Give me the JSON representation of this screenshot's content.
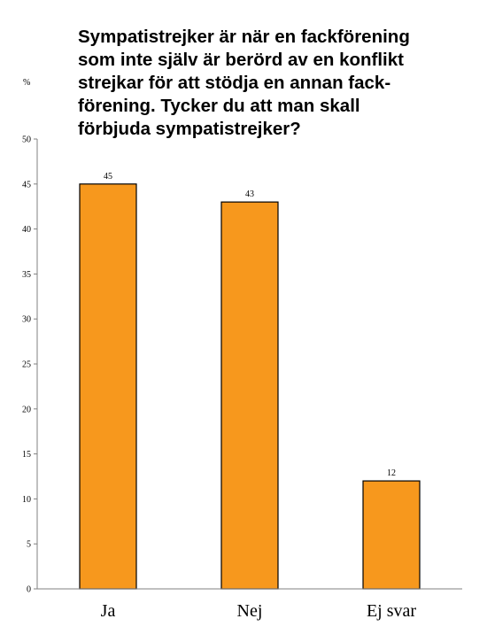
{
  "title": "Sympatistrejker är när en fackförening\nsom inte själv är berörd av en konflikt\nstrejkar för att stödja en annan fack-\nförening. Tycker du att man skall\nförbjuda sympatistrejker?",
  "colors": {
    "bar": "#F7981D",
    "axis": "#808080",
    "stroke": "#000000"
  },
  "chart_data": {
    "type": "bar",
    "title": "Sympatistrejker är när en fackförening som inte själv är berörd av en konflikt strejkar för att stödja en annan fack-förening. Tycker du att man skall förbjuda sympatistrejker?",
    "ylabel": "%",
    "xlabel": "",
    "categories": [
      "Ja",
      "Nej",
      "Ej svar"
    ],
    "values": [
      45,
      43,
      12
    ],
    "ylim": [
      0,
      50
    ],
    "yticks": [
      0,
      5,
      10,
      15,
      20,
      25,
      30,
      35,
      40,
      45,
      50
    ],
    "data_labels": true,
    "grid": false,
    "legend": "none"
  }
}
